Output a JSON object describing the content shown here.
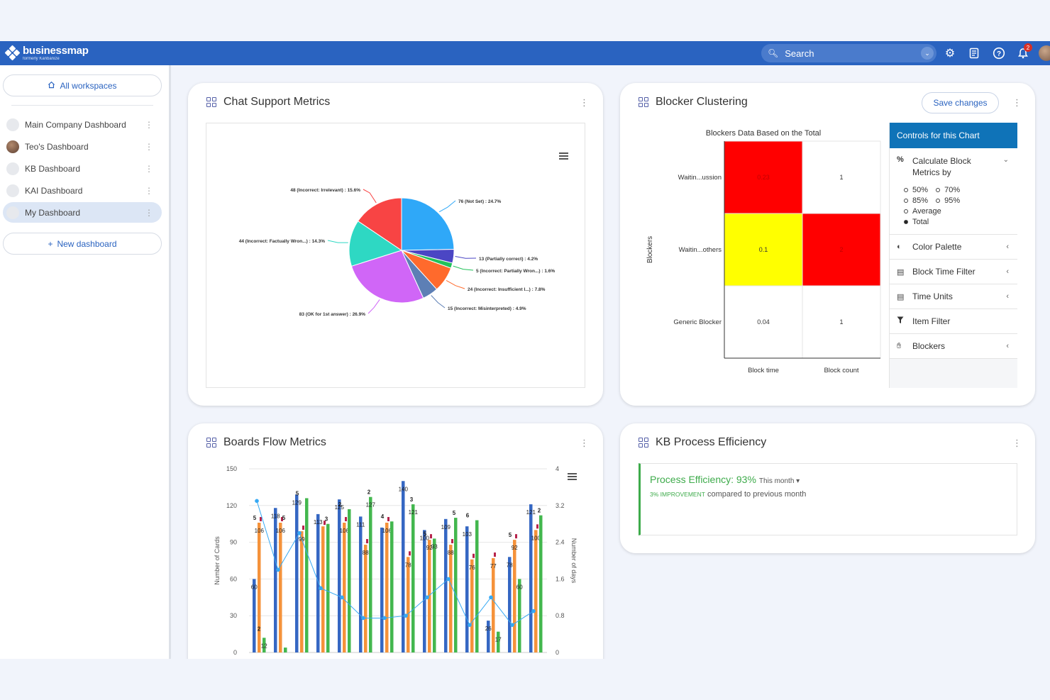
{
  "header": {
    "logo_name": "businessmap",
    "logo_sub": "formerly Kanbanize",
    "search_placeholder": "Search",
    "notification_count": "2",
    "icons": [
      "gear-icon",
      "notes-icon",
      "help-icon",
      "bell-icon"
    ]
  },
  "sidebar": {
    "all_workspaces_label": "All workspaces",
    "dashboards": [
      {
        "label": "Main Company Dashboard",
        "avatar": "none"
      },
      {
        "label": "Teo's Dashboard",
        "avatar": "photo"
      },
      {
        "label": "KB Dashboard",
        "avatar": "none"
      },
      {
        "label": "KAI Dashboard",
        "avatar": "none"
      },
      {
        "label": "My Dashboard",
        "avatar": "none",
        "active": true
      }
    ],
    "new_dashboard_label": "New dashboard"
  },
  "cards": {
    "chat_support": {
      "title": "Chat Support Metrics"
    },
    "blocker_clustering": {
      "title": "Blocker Clustering",
      "save_label": "Save changes"
    },
    "boards_flow": {
      "title": "Boards Flow Metrics"
    },
    "kb_process": {
      "title": "KB Process Efficiency",
      "efficiency_label": "Process Efficiency: 93%",
      "period": "This month",
      "improvement": "3% IMPROVEMENT",
      "comparison": "compared to previous month"
    }
  },
  "blocker_controls": {
    "heading": "Controls for this Chart",
    "calc_label": "Calculate Block Metrics by",
    "options": [
      {
        "label": "50%",
        "selected": false
      },
      {
        "label": "70%",
        "selected": false
      },
      {
        "label": "85%",
        "selected": false
      },
      {
        "label": "95%",
        "selected": false
      },
      {
        "label": "Average",
        "selected": false
      },
      {
        "label": "Total",
        "selected": true
      }
    ],
    "sections": [
      "Color Palette",
      "Block Time Filter",
      "Time Units",
      "Item Filter",
      "Blockers"
    ]
  },
  "chart_data": [
    {
      "type": "pie",
      "slices": [
        {
          "label": "76 (Not Set) : 24.7%",
          "value": 76,
          "percent": 24.7,
          "color": "#2fa8f8"
        },
        {
          "label": "13 (Partially correct) : 4.2%",
          "value": 13,
          "percent": 4.2,
          "color": "#4b46c4"
        },
        {
          "label": "5 (Incorrect: Partially Wron...) : 1.6%",
          "value": 5,
          "percent": 1.6,
          "color": "#22c25a"
        },
        {
          "label": "24 (Incorrect: Insufficient I...) : 7.8%",
          "value": 24,
          "percent": 7.8,
          "color": "#ff6a2c"
        },
        {
          "label": "15 (Incorrect: Misinterpreted) : 4.9%",
          "value": 15,
          "percent": 4.9,
          "color": "#5d7fb5"
        },
        {
          "label": "83 (OK for 1st answer) : 26.9%",
          "value": 83,
          "percent": 26.9,
          "color": "#d066f7"
        },
        {
          "label": "44 (Incorrect: Factually Wron...) : 14.3%",
          "value": 44,
          "percent": 14.3,
          "color": "#2ed8c3"
        },
        {
          "label": "48 (Incorrect: Irrelevant) : 15.6%",
          "value": 48,
          "percent": 15.6,
          "color": "#f84444"
        }
      ]
    },
    {
      "type": "heatmap",
      "title": "Blockers Data Based on the Total",
      "ylabel": "Blockers",
      "rows": [
        "Waitin...ussion",
        "Waitin...others",
        "Generic Blocker"
      ],
      "columns": [
        "Block time",
        "Block count"
      ],
      "values": [
        [
          "0.23",
          "1"
        ],
        [
          "0.1",
          "2"
        ],
        [
          "0.04",
          "1"
        ]
      ],
      "colors": [
        [
          "#ff0000",
          "#ffffff"
        ],
        [
          "#ffff00",
          "#ff0000"
        ],
        [
          "#ffffff",
          "#ffffff"
        ]
      ]
    },
    {
      "type": "bar",
      "ylabel": "Number of Cards",
      "y2label": "Number of days",
      "ylim": [
        0,
        150
      ],
      "yticks": [
        0,
        30,
        60,
        90,
        120,
        150
      ],
      "y2ticks": [
        "0",
        "0.8",
        "1.6",
        "2.4",
        "3.2",
        "4"
      ],
      "colors": {
        "blue": "#3567c3",
        "orange": "#f5923a",
        "green": "#43b74e",
        "red": "#b7234b",
        "line": "#36a9f4"
      },
      "groups": [
        {
          "blue": 60,
          "blue_label": "60",
          "orange": 106,
          "orange_label": "106",
          "green": 12,
          "green_label": "12",
          "red": 2,
          "red_label": "2",
          "top_label": "5",
          "line": 3.3
        },
        {
          "blue": 118,
          "blue_label": "118",
          "orange": 106,
          "orange_label": "106",
          "green": 4,
          "red": 4,
          "top_label": "5",
          "line": 1.8
        },
        {
          "blue": 129,
          "blue_label": "129",
          "orange": 99,
          "orange_label": "99",
          "green": 126,
          "red": 3,
          "top_label": "5",
          "line": 2.6
        },
        {
          "blue": 113,
          "blue_label": "113",
          "orange": 103,
          "orange_label": "",
          "green": 105,
          "red": 3,
          "top_label": "3",
          "line": 1.4
        },
        {
          "blue": 125,
          "blue_label": "125",
          "orange": 106,
          "orange_label": "106",
          "green": 117,
          "red": 2,
          "top_label": "2",
          "line": 1.2
        },
        {
          "blue": 111,
          "blue_label": "111",
          "orange": 88,
          "orange_label": "88",
          "green": 127,
          "green_label": "127",
          "red": 2,
          "top_label": "2",
          "line": 0.75
        },
        {
          "blue": 102,
          "blue_label": "",
          "orange": 106,
          "orange_label": "106",
          "green": 107,
          "red": 2,
          "top_label": "4",
          "line": 0.75
        },
        {
          "blue": 140,
          "blue_label": "140",
          "orange": 78,
          "orange_label": "78",
          "green": 121,
          "green_label": "121",
          "red": 2,
          "top_label": "3",
          "line": 0.8
        },
        {
          "blue": 100,
          "blue_label": "100",
          "orange": 92,
          "orange_label": "92",
          "green": 93,
          "green_label": "93",
          "red": 3,
          "top_label": "5",
          "line": 1.2
        },
        {
          "blue": 109,
          "blue_label": "109",
          "orange": 88,
          "orange_label": "88",
          "green": 110,
          "red": 2,
          "top_label": "5",
          "line": 1.6
        },
        {
          "blue": 103,
          "blue_label": "103",
          "orange": 76,
          "orange_label": "76",
          "green": 108,
          "red": 3,
          "top_label": "6",
          "line": 0.6
        },
        {
          "blue": 26,
          "blue_label": "26",
          "orange": 77,
          "orange_label": "77",
          "green": 17,
          "green_label": "17",
          "red": 2,
          "top_label": "",
          "line": 1.2
        },
        {
          "blue": 78,
          "blue_label": "78",
          "orange": 92,
          "orange_label": "92",
          "green": 60,
          "green_label": "60",
          "red": 2,
          "top_label": "5",
          "line": 0.6
        },
        {
          "blue": 121,
          "blue_label": "121",
          "orange": 100,
          "orange_label": "100",
          "green": 112,
          "red": 2,
          "top_label": "2",
          "line": 0.9
        }
      ]
    }
  ]
}
